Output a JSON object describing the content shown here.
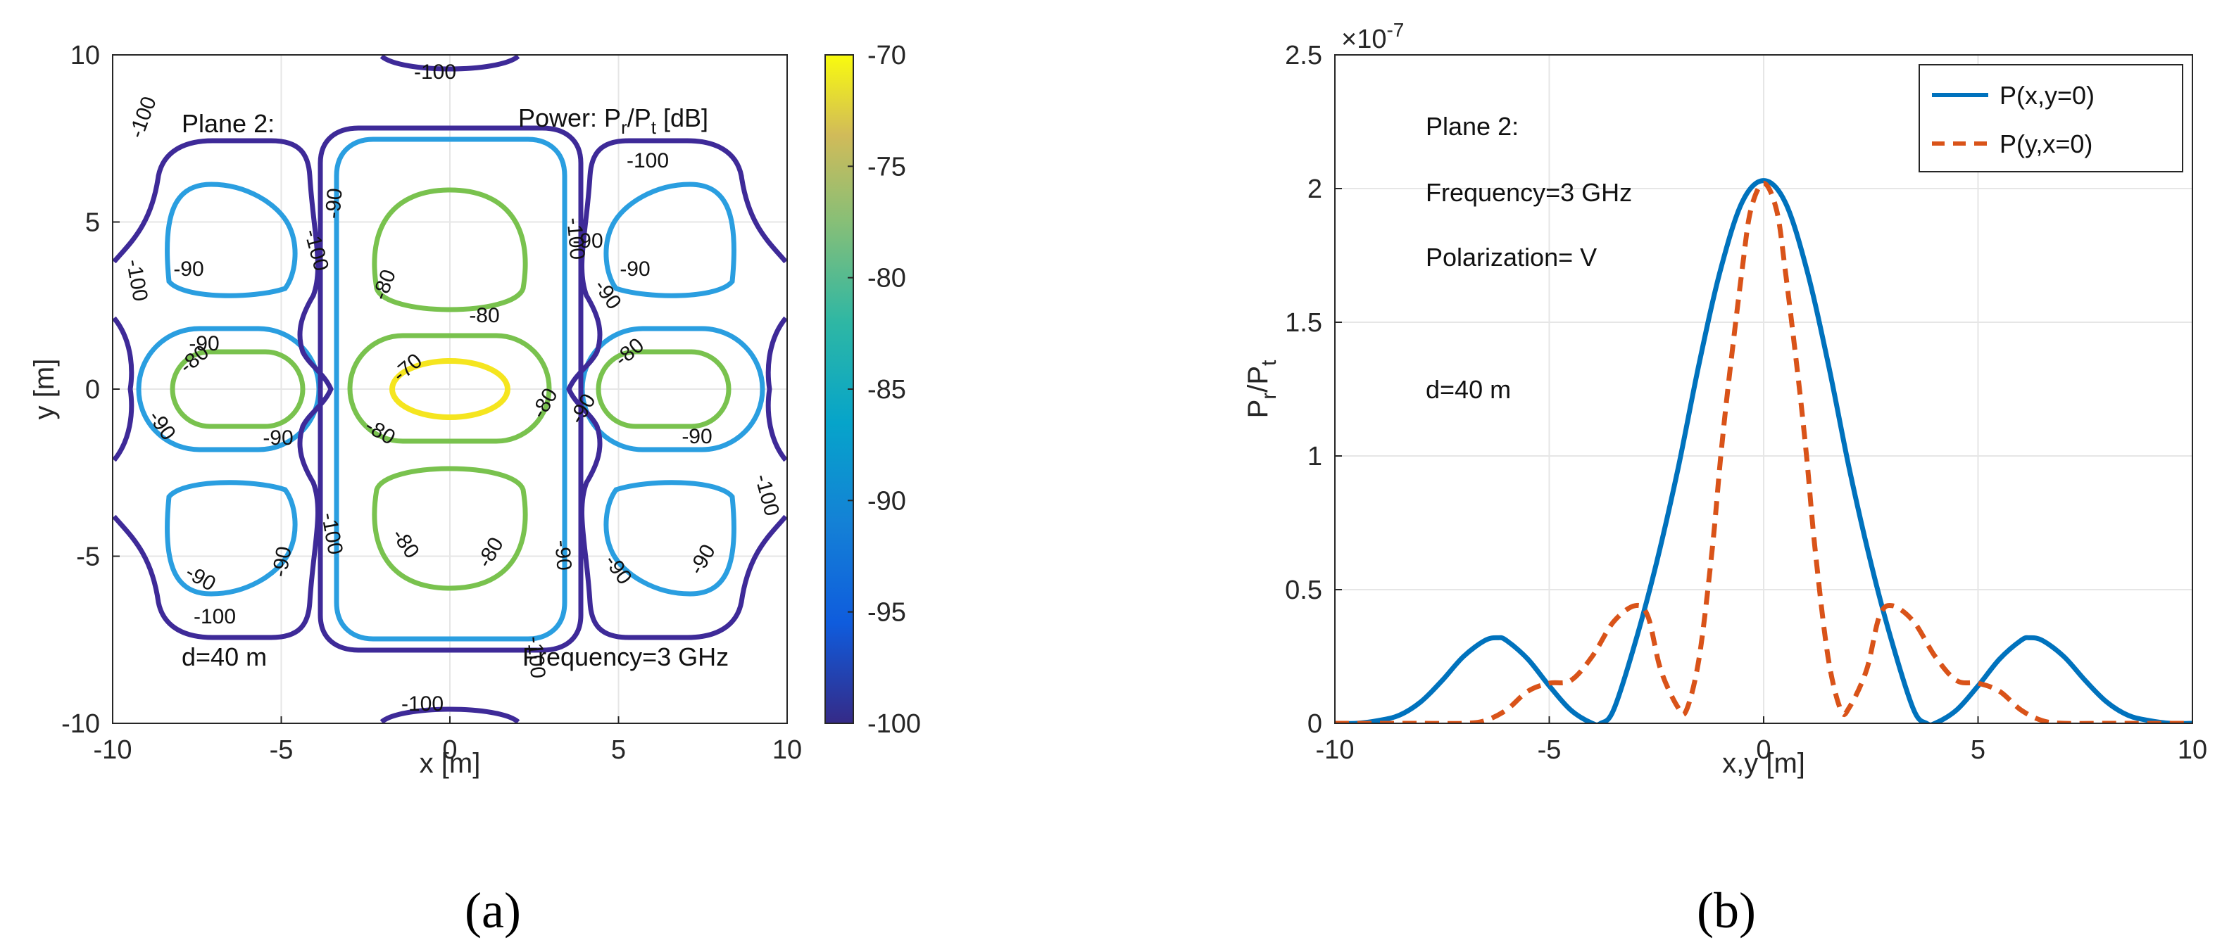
{
  "figure": {
    "panel_a_label": "(a)",
    "panel_b_label": "(b)"
  },
  "chart_data": [
    {
      "type": "contour",
      "xlabel": "x [m]",
      "ylabel": "y [m]",
      "xlim": [
        -10,
        10
      ],
      "ylim": [
        -10,
        10
      ],
      "xticks": [
        "-10",
        "-5",
        "0",
        "5",
        "10"
      ],
      "yticks": [
        "10",
        "5",
        "0",
        "-5",
        "-10"
      ],
      "grid": true,
      "annotations": {
        "plane": "Plane 2:",
        "power_prefix": "Power: P",
        "power_sub_r": "r",
        "power_mid": "/P",
        "power_sub_t": "t",
        "power_suffix": " [dB]",
        "distance": "d=40 m",
        "frequency": "Frequency=3 GHz"
      },
      "colorbar": {
        "range": [
          -100,
          -70
        ],
        "ticks": [
          "-70",
          "-75",
          "-80",
          "-85",
          "-90",
          "-95",
          "-100"
        ]
      },
      "contour_levels": [
        {
          "level": -70,
          "label": "-70",
          "color": "#f5e51f"
        },
        {
          "level": -80,
          "label": "-80",
          "color": "#79c24e"
        },
        {
          "level": -90,
          "label": "-90",
          "color": "#2a9ee0"
        },
        {
          "level": -100,
          "label": "-100",
          "color": "#3e2a98"
        }
      ]
    },
    {
      "type": "line",
      "xlabel": "x,y [m]",
      "ylabel_main": "P",
      "ylabel_sub_r": "r",
      "ylabel_mid": "/P",
      "ylabel_sub_t": "t",
      "exponent_base": "×10",
      "exponent_power": "-7",
      "xlim": [
        -10,
        10
      ],
      "ylim": [
        0,
        2.5
      ],
      "xticks": [
        "-10",
        "-5",
        "0",
        "5",
        "10"
      ],
      "yticks": [
        "0",
        "0.5",
        "1",
        "1.5",
        "2",
        "2.5"
      ],
      "grid": true,
      "legend_position": "top-right",
      "annotations": {
        "plane": "Plane 2:",
        "frequency": "Frequency=3 GHz",
        "polarization": "Polarization= V",
        "distance": "d=40 m"
      },
      "series": [
        {
          "name": "P(x,y=0)",
          "color": "#0072bd",
          "style": "solid",
          "x": [
            -10,
            -9.5,
            -9,
            -8.5,
            -8,
            -7.5,
            -7,
            -6.5,
            -6.2,
            -6,
            -5.5,
            -5,
            -4.5,
            -4,
            -3.8,
            -3.5,
            -3,
            -2.5,
            -2,
            -1.5,
            -1,
            -0.5,
            0,
            0.5,
            1,
            1.5,
            2,
            2.5,
            3,
            3.5,
            3.8,
            4,
            4.5,
            5,
            5.5,
            6,
            6.2,
            6.5,
            7,
            7.5,
            8,
            8.5,
            9,
            9.5,
            10
          ],
          "y": [
            0.0,
            0.0,
            0.01,
            0.03,
            0.08,
            0.16,
            0.25,
            0.31,
            0.32,
            0.31,
            0.24,
            0.14,
            0.05,
            0.0,
            0.0,
            0.05,
            0.3,
            0.6,
            0.95,
            1.35,
            1.7,
            1.95,
            2.03,
            1.95,
            1.7,
            1.35,
            0.95,
            0.6,
            0.3,
            0.05,
            0.0,
            0.0,
            0.05,
            0.14,
            0.24,
            0.31,
            0.32,
            0.31,
            0.25,
            0.16,
            0.08,
            0.03,
            0.01,
            0.0,
            0.0
          ]
        },
        {
          "name": "P(y,x=0)",
          "color": "#d95319",
          "style": "dashed",
          "x": [
            -10,
            -9,
            -8,
            -7,
            -6.5,
            -6,
            -5.5,
            -5,
            -4.5,
            -4,
            -3.5,
            -3,
            -2.7,
            -2.4,
            -2,
            -1.8,
            -1.5,
            -1.2,
            -1,
            -0.8,
            -0.5,
            -0.3,
            0,
            0.3,
            0.5,
            0.8,
            1,
            1.2,
            1.5,
            1.8,
            2,
            2.4,
            2.7,
            3,
            3.5,
            4,
            4.5,
            5,
            5.5,
            6,
            6.5,
            7,
            8,
            9,
            10
          ],
          "y": [
            0.0,
            0.0,
            0.0,
            0.0,
            0.01,
            0.05,
            0.12,
            0.15,
            0.16,
            0.25,
            0.38,
            0.44,
            0.4,
            0.2,
            0.06,
            0.05,
            0.25,
            0.65,
            1.0,
            1.3,
            1.7,
            1.92,
            2.02,
            1.92,
            1.7,
            1.3,
            1.0,
            0.65,
            0.25,
            0.05,
            0.06,
            0.2,
            0.4,
            0.44,
            0.38,
            0.25,
            0.16,
            0.15,
            0.12,
            0.05,
            0.01,
            0.0,
            0.0,
            0.0,
            0.0
          ]
        }
      ]
    }
  ]
}
